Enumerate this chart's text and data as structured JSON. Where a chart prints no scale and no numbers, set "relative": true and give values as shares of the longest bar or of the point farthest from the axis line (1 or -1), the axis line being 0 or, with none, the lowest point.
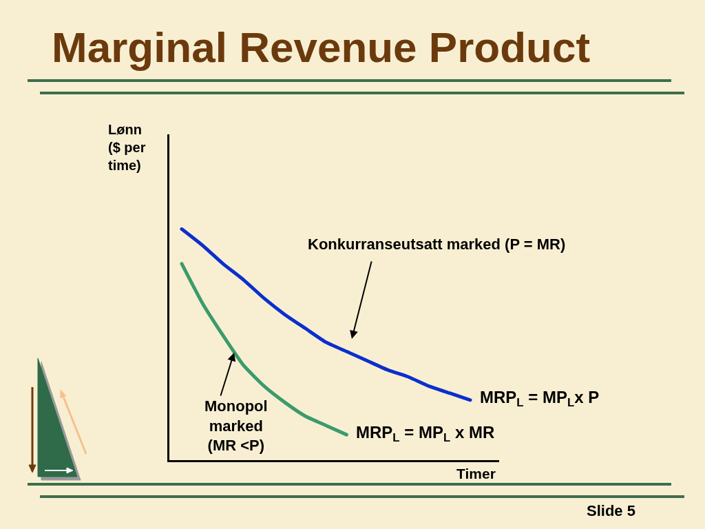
{
  "chart_data": {
    "type": "line",
    "title": "Marginal Revenue Product",
    "ylabel": "Lønn\n($ per\ntime)",
    "xlabel": "Timer",
    "relative": true,
    "categories": [
      null,
      null,
      null,
      null,
      null,
      null,
      null,
      null,
      null,
      null,
      null,
      null,
      null,
      null,
      null
    ],
    "series": [
      {
        "name": "MRP$_{L}$ = MP$_{L}$x P",
        "color": "#0b2fcc",
        "values": [
          1.0,
          0.93,
          0.85,
          0.78,
          0.7,
          0.63,
          0.57,
          0.51,
          0.47,
          0.43,
          0.39,
          0.36,
          0.32,
          0.29,
          0.26
        ]
      },
      {
        "name": "MRP$_{L}$ = MP$_{L}$ x MR",
        "color": "#3b9b6b",
        "values": [
          0.85,
          0.68,
          0.54,
          0.41,
          0.32,
          0.25,
          0.19,
          0.15,
          0.11,
          null,
          null,
          null,
          null,
          null,
          null
        ]
      }
    ],
    "annotations": [
      "Konkurranseutsatt marked (P = MR)",
      "Monopol\nmarked\n(MR <P)",
      "Slide 5"
    ]
  }
}
